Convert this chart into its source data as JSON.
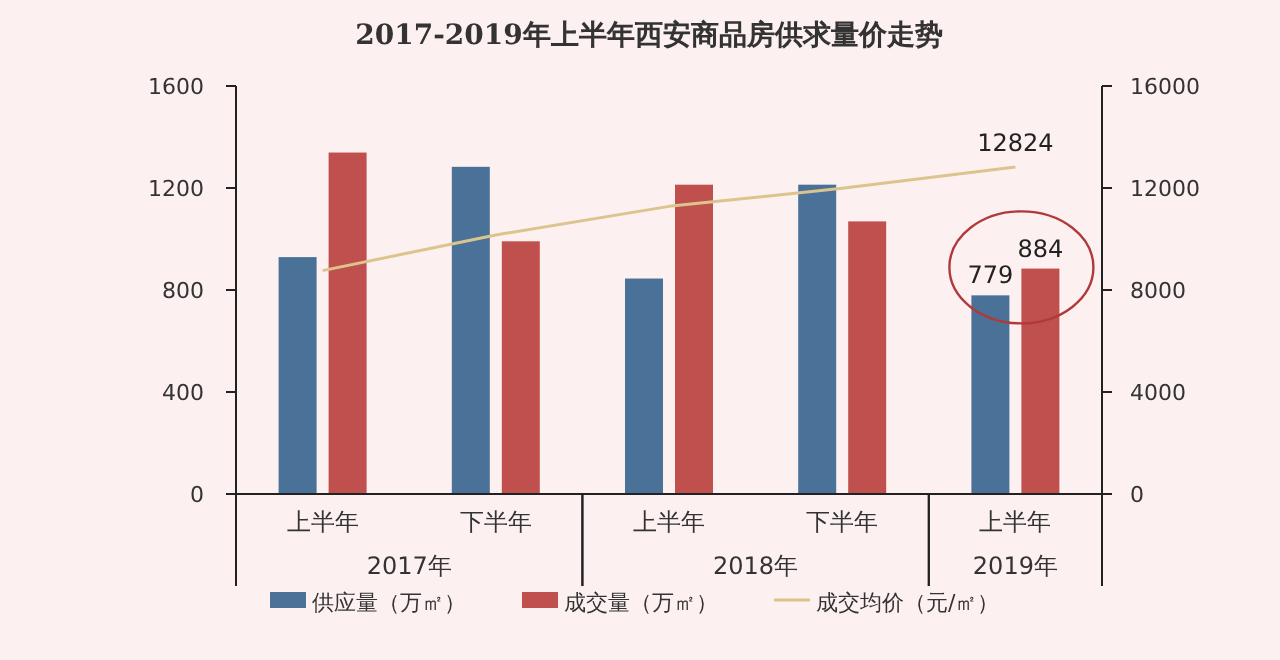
{
  "chart_data": {
    "type": "bar",
    "title": "2017-2019年上半年西安商品房供求量价走势",
    "categories": [
      "上半年",
      "下半年",
      "上半年",
      "下半年",
      "上半年"
    ],
    "series": [
      {
        "name": "供应量（万㎡）",
        "color": "#4a7198",
        "values": [
          929,
          1283,
          845,
          1213,
          779
        ],
        "value_labels": [
          null,
          null,
          null,
          null,
          "779"
        ]
      },
      {
        "name": "成交量（万㎡）",
        "color": "#c0504d",
        "values": [
          1339,
          991,
          1213,
          1069,
          884
        ],
        "value_labels": [
          null,
          null,
          null,
          null,
          "884"
        ]
      },
      {
        "name": "成交均价（元/㎡）",
        "type": "line",
        "axis": "y2",
        "color": "#dcc48e",
        "values": [
          8760,
          10160,
          11280,
          11990,
          12824
        ],
        "value_labels": [
          null,
          null,
          null,
          null,
          "12824"
        ]
      }
    ],
    "ylim": [
      0,
      1600
    ],
    "yticks": [
      0,
      400,
      800,
      1200,
      1600
    ],
    "y2lim": [
      0,
      16000
    ],
    "y2ticks": [
      0,
      4000,
      8000,
      12000,
      16000
    ],
    "annotations": [
      "2017年",
      "2018年",
      "2019年"
    ],
    "legend": "bottom",
    "marker": "none",
    "line_style": "solid"
  }
}
